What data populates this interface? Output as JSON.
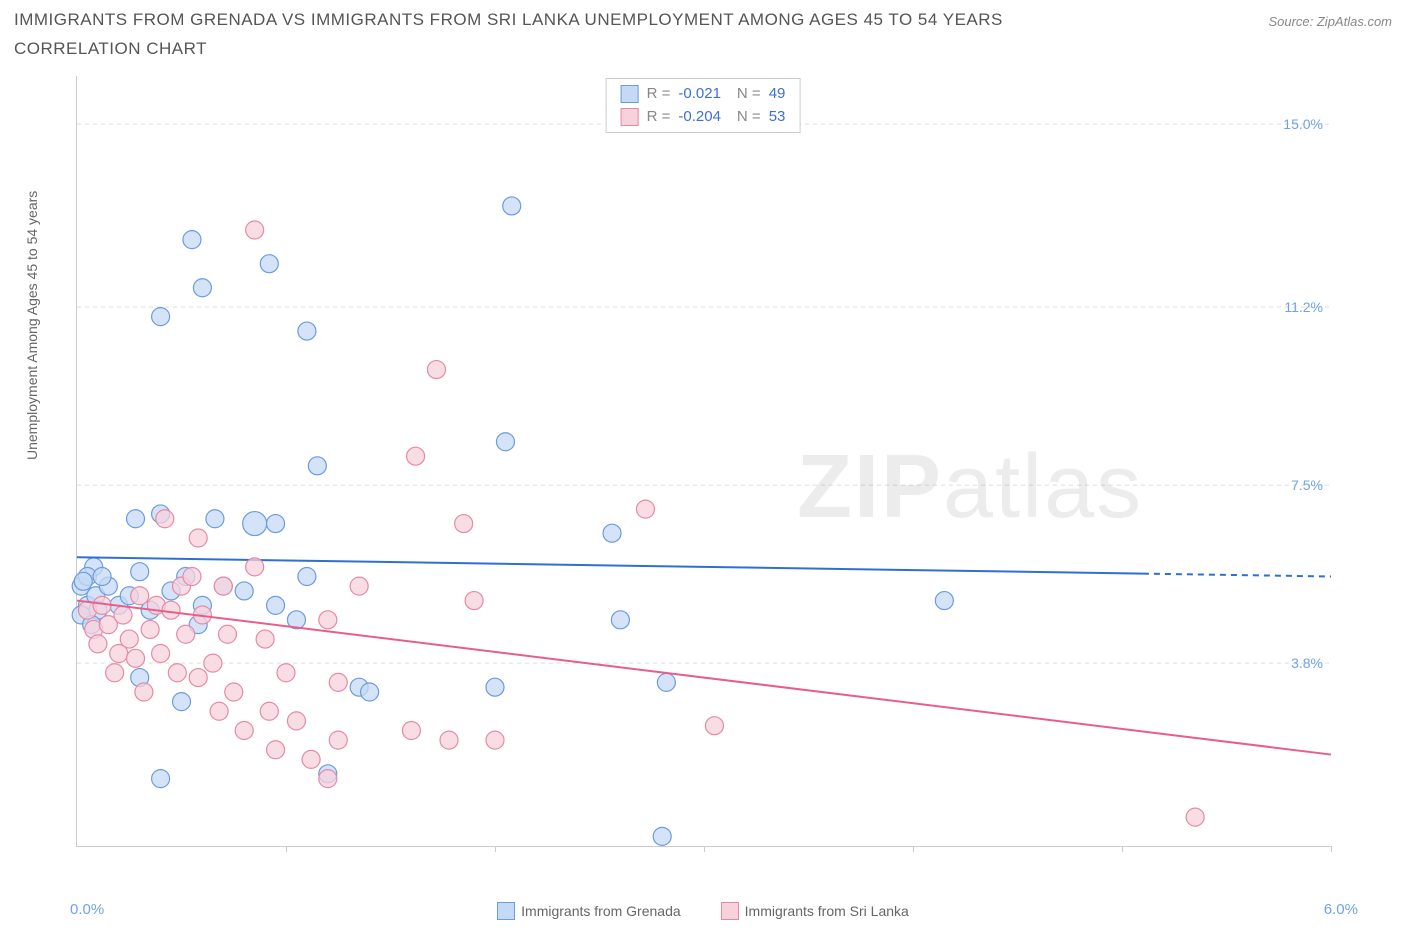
{
  "title": "IMMIGRANTS FROM GRENADA VS IMMIGRANTS FROM SRI LANKA UNEMPLOYMENT AMONG AGES 45 TO 54 YEARS CORRELATION CHART",
  "source": "Source: ZipAtlas.com",
  "ylabel": "Unemployment Among Ages 45 to 54 years",
  "chart": {
    "type": "scatter",
    "xlim": [
      0,
      6
    ],
    "ylim": [
      0,
      16
    ],
    "grid_y": [
      3.8,
      7.5,
      11.2,
      15.0
    ],
    "grid_dash": "4,4",
    "grid_color": "#dddddd",
    "axis_color": "#cccccc",
    "x_tick_positions": [
      1,
      2,
      3,
      4,
      5,
      6
    ],
    "x_min_label": "0.0%",
    "x_max_label": "6.0%",
    "ytick_labels": [
      "3.8%",
      "7.5%",
      "11.2%",
      "15.0%"
    ],
    "ytick_color": "#6fa3e8",
    "xlabel_color": "#6fa3e8",
    "marker_radius": 9,
    "marker_stroke_width": 1.2,
    "line_width": 2
  },
  "series": [
    {
      "name": "Immigrants from Grenada",
      "fill": "#c6d9f4",
      "stroke": "#6b9be0",
      "line_color": "#2f6fd1",
      "R": "-0.021",
      "N": "49",
      "trend": {
        "x1": 0,
        "y1": 6.0,
        "x2": 6,
        "y2": 5.6,
        "solid_until_x": 5.1
      },
      "points": [
        {
          "x": 0.02,
          "y": 5.4
        },
        {
          "x": 0.05,
          "y": 5.0
        },
        {
          "x": 0.08,
          "y": 5.8
        },
        {
          "x": 0.05,
          "y": 5.6
        },
        {
          "x": 0.09,
          "y": 5.2
        },
        {
          "x": 0.03,
          "y": 5.5
        },
        {
          "x": 0.1,
          "y": 4.9
        },
        {
          "x": 0.02,
          "y": 4.8
        },
        {
          "x": 0.4,
          "y": 11.0
        },
        {
          "x": 0.55,
          "y": 12.6
        },
        {
          "x": 0.6,
          "y": 11.6
        },
        {
          "x": 0.92,
          "y": 12.1
        },
        {
          "x": 1.1,
          "y": 10.7
        },
        {
          "x": 0.85,
          "y": 6.7,
          "r": 12
        },
        {
          "x": 0.4,
          "y": 6.9
        },
        {
          "x": 0.66,
          "y": 6.8
        },
        {
          "x": 0.3,
          "y": 3.5
        },
        {
          "x": 0.5,
          "y": 3.0
        },
        {
          "x": 0.4,
          "y": 1.4
        },
        {
          "x": 0.15,
          "y": 5.4
        },
        {
          "x": 0.2,
          "y": 5.0
        },
        {
          "x": 0.3,
          "y": 5.7
        },
        {
          "x": 0.45,
          "y": 5.3
        },
        {
          "x": 0.58,
          "y": 4.6
        },
        {
          "x": 0.7,
          "y": 5.4
        },
        {
          "x": 0.8,
          "y": 5.3
        },
        {
          "x": 0.95,
          "y": 6.7
        },
        {
          "x": 1.1,
          "y": 5.6
        },
        {
          "x": 1.05,
          "y": 4.7
        },
        {
          "x": 1.15,
          "y": 7.9
        },
        {
          "x": 1.35,
          "y": 3.3
        },
        {
          "x": 1.4,
          "y": 3.2
        },
        {
          "x": 1.2,
          "y": 1.5
        },
        {
          "x": 2.08,
          "y": 13.3
        },
        {
          "x": 2.05,
          "y": 8.4
        },
        {
          "x": 2.0,
          "y": 3.3
        },
        {
          "x": 2.56,
          "y": 6.5
        },
        {
          "x": 2.6,
          "y": 4.7
        },
        {
          "x": 2.82,
          "y": 3.4
        },
        {
          "x": 2.8,
          "y": 0.2
        },
        {
          "x": 4.15,
          "y": 5.1
        },
        {
          "x": 0.6,
          "y": 5.0
        },
        {
          "x": 0.95,
          "y": 5.0
        },
        {
          "x": 0.28,
          "y": 6.8
        },
        {
          "x": 0.12,
          "y": 5.6
        },
        {
          "x": 0.35,
          "y": 4.9
        },
        {
          "x": 0.25,
          "y": 5.2
        },
        {
          "x": 0.52,
          "y": 5.6
        },
        {
          "x": 0.07,
          "y": 4.6
        }
      ]
    },
    {
      "name": "Immigrants from Sri Lanka",
      "fill": "#f7d2dc",
      "stroke": "#e58aa6",
      "line_color": "#e75f89",
      "R": "-0.204",
      "N": "53",
      "trend": {
        "x1": 0,
        "y1": 5.1,
        "x2": 6,
        "y2": 1.9,
        "solid_until_x": 6
      },
      "points": [
        {
          "x": 0.05,
          "y": 4.9
        },
        {
          "x": 0.08,
          "y": 4.5
        },
        {
          "x": 0.12,
          "y": 5.0
        },
        {
          "x": 0.1,
          "y": 4.2
        },
        {
          "x": 0.15,
          "y": 4.6
        },
        {
          "x": 0.2,
          "y": 4.0
        },
        {
          "x": 0.22,
          "y": 4.8
        },
        {
          "x": 0.25,
          "y": 4.3
        },
        {
          "x": 0.28,
          "y": 3.9
        },
        {
          "x": 0.3,
          "y": 5.2
        },
        {
          "x": 0.35,
          "y": 4.5
        },
        {
          "x": 0.38,
          "y": 5.0
        },
        {
          "x": 0.4,
          "y": 4.0
        },
        {
          "x": 0.42,
          "y": 6.8
        },
        {
          "x": 0.45,
          "y": 4.9
        },
        {
          "x": 0.5,
          "y": 5.4
        },
        {
          "x": 0.52,
          "y": 4.4
        },
        {
          "x": 0.55,
          "y": 5.6
        },
        {
          "x": 0.58,
          "y": 3.5
        },
        {
          "x": 0.6,
          "y": 4.8
        },
        {
          "x": 0.7,
          "y": 5.4
        },
        {
          "x": 0.72,
          "y": 4.4
        },
        {
          "x": 0.75,
          "y": 3.2
        },
        {
          "x": 0.8,
          "y": 2.4
        },
        {
          "x": 0.85,
          "y": 12.8
        },
        {
          "x": 0.85,
          "y": 5.8
        },
        {
          "x": 0.9,
          "y": 4.3
        },
        {
          "x": 0.92,
          "y": 2.8
        },
        {
          "x": 0.95,
          "y": 2.0
        },
        {
          "x": 1.05,
          "y": 2.6
        },
        {
          "x": 1.12,
          "y": 1.8
        },
        {
          "x": 1.2,
          "y": 1.4
        },
        {
          "x": 1.25,
          "y": 2.2
        },
        {
          "x": 1.2,
          "y": 4.7
        },
        {
          "x": 1.25,
          "y": 3.4
        },
        {
          "x": 1.62,
          "y": 8.1
        },
        {
          "x": 1.72,
          "y": 9.9
        },
        {
          "x": 1.6,
          "y": 2.4
        },
        {
          "x": 1.78,
          "y": 2.2
        },
        {
          "x": 1.85,
          "y": 6.7
        },
        {
          "x": 1.9,
          "y": 5.1
        },
        {
          "x": 2.0,
          "y": 2.2
        },
        {
          "x": 2.72,
          "y": 7.0
        },
        {
          "x": 3.05,
          "y": 2.5
        },
        {
          "x": 5.35,
          "y": 0.6
        },
        {
          "x": 0.18,
          "y": 3.6
        },
        {
          "x": 0.32,
          "y": 3.2
        },
        {
          "x": 0.48,
          "y": 3.6
        },
        {
          "x": 0.65,
          "y": 3.8
        },
        {
          "x": 0.68,
          "y": 2.8
        },
        {
          "x": 1.0,
          "y": 3.6
        },
        {
          "x": 1.35,
          "y": 5.4
        },
        {
          "x": 0.58,
          "y": 6.4
        }
      ]
    }
  ],
  "watermark": {
    "zip": "ZIP",
    "atlas": "atlas"
  }
}
